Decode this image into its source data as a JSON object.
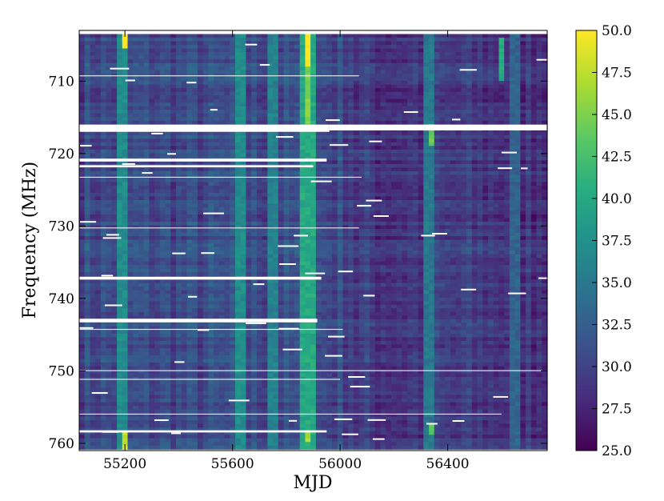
{
  "chart_data": {
    "type": "heatmap",
    "title": "",
    "xlabel": "MJD",
    "ylabel": "Frequency (MHz)",
    "xlim": [
      55030,
      56770
    ],
    "ylim": [
      761,
      703
    ],
    "data_ylim": [
      703.5,
      760.8
    ],
    "xticks": [
      55200,
      55600,
      56000,
      56400
    ],
    "yticks": [
      710,
      720,
      730,
      740,
      750,
      760
    ],
    "colorbar": {
      "min": 25.0,
      "max": 50.0,
      "ticks": [
        "25.0",
        "27.5",
        "30.0",
        "32.5",
        "35.0",
        "37.5",
        "40.0",
        "42.5",
        "45.0",
        "47.5",
        "50.0"
      ],
      "colormap": "viridis"
    },
    "background_level": 30.5,
    "bright_columns": [
      {
        "mjd_start": 55185,
        "mjd_end": 55205,
        "value": 37
      },
      {
        "mjd_start": 55865,
        "mjd_end": 55890,
        "value": 40
      },
      {
        "mjd_start": 55630,
        "mjd_end": 55640,
        "value": 37
      },
      {
        "mjd_start": 55745,
        "mjd_end": 55760,
        "value": 36
      },
      {
        "mjd_start": 56330,
        "mjd_end": 56345,
        "value": 35
      },
      {
        "mjd_start": 56640,
        "mjd_end": 56660,
        "value": 33
      }
    ],
    "hot_spots": [
      {
        "mjd_start": 55185,
        "mjd_end": 55205,
        "freq_start": 703.5,
        "freq_end": 705.5,
        "value": 50
      },
      {
        "mjd_start": 55868,
        "mjd_end": 55888,
        "freq_start": 703.5,
        "freq_end": 708,
        "value": 50
      },
      {
        "mjd_start": 55868,
        "mjd_end": 55888,
        "freq_start": 708,
        "freq_end": 716,
        "value": 45
      },
      {
        "mjd_start": 55185,
        "mjd_end": 55205,
        "freq_start": 758.5,
        "freq_end": 760.8,
        "value": 48
      },
      {
        "mjd_start": 55868,
        "mjd_end": 55888,
        "freq_start": 758.5,
        "freq_end": 760,
        "value": 47
      },
      {
        "mjd_start": 56330,
        "mjd_end": 56345,
        "freq_start": 716,
        "freq_end": 719,
        "value": 44
      },
      {
        "mjd_start": 56330,
        "mjd_end": 56345,
        "freq_start": 757.5,
        "freq_end": 759,
        "value": 43
      },
      {
        "mjd_start": 56595,
        "mjd_end": 56602,
        "freq_start": 704,
        "freq_end": 710,
        "value": 40
      }
    ],
    "masked_bands": [
      {
        "mjd_start": 55030,
        "mjd_end": 55960,
        "freq_start": 716.0,
        "freq_end": 717.0
      },
      {
        "mjd_start": 55960,
        "mjd_end": 56770,
        "freq_start": 716.0,
        "freq_end": 716.8
      },
      {
        "mjd_start": 55030,
        "mjd_end": 55950,
        "freq_start": 720.7,
        "freq_end": 721.1
      },
      {
        "mjd_start": 55030,
        "mjd_end": 55900,
        "freq_start": 721.6,
        "freq_end": 721.9
      },
      {
        "mjd_start": 55030,
        "mjd_end": 55930,
        "freq_start": 737.0,
        "freq_end": 737.4
      },
      {
        "mjd_start": 55030,
        "mjd_end": 55915,
        "freq_start": 742.8,
        "freq_end": 743.3
      },
      {
        "mjd_start": 55030,
        "mjd_end": 55950,
        "freq_start": 758.2,
        "freq_end": 758.5
      }
    ],
    "thin_lines": [
      {
        "mjd_start": 55030,
        "mjd_end": 56070,
        "freq": 709.2
      },
      {
        "mjd_start": 55030,
        "mjd_end": 56080,
        "freq": 723.2
      },
      {
        "mjd_start": 55030,
        "mjd_end": 56070,
        "freq": 730.2
      },
      {
        "mjd_start": 55030,
        "mjd_end": 56010,
        "freq": 744.2
      },
      {
        "mjd_start": 55030,
        "mjd_end": 56750,
        "freq": 749.9
      },
      {
        "mjd_start": 55030,
        "mjd_end": 56000,
        "freq": 751.1
      },
      {
        "mjd_start": 55030,
        "mjd_end": 56600,
        "freq": 755.9
      }
    ]
  }
}
